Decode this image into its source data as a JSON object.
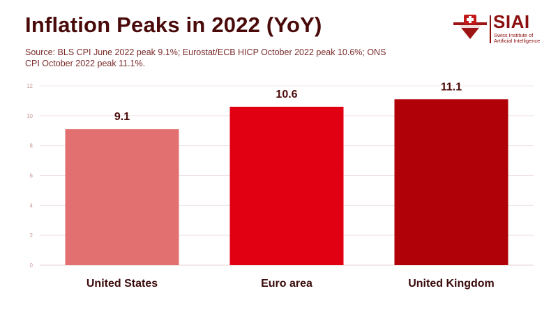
{
  "title": "Inflation Peaks in 2022 (YoY)",
  "subtitle": "Source: BLS CPI June 2022 peak 9.1%; Eurostat/ECB HICP October 2022 peak 10.6%; ONS CPI October 2022 peak 11.1%.",
  "logo": {
    "word": "SIAI",
    "line1": "Swiss Institute of",
    "line2": "Artificial Intelligence",
    "icon": "swiss-cross-shield-icon"
  },
  "colors": {
    "title": "#4a0a0a",
    "bar_us": "#e37070",
    "bar_euro": "#e00012",
    "bar_uk": "#b00008",
    "grid": "#f0e4e4",
    "tick": "#cc9999"
  },
  "chart_data": {
    "type": "bar",
    "title": "Inflation Peaks in 2022 (YoY)",
    "categories": [
      "United States",
      "Euro area",
      "United Kingdom"
    ],
    "values": [
      9.1,
      10.6,
      11.1
    ],
    "value_labels": [
      "9.1",
      "10.6",
      "11.1"
    ],
    "xlabel": "",
    "ylabel": "",
    "ylim": [
      0,
      12
    ],
    "yticks": [
      0,
      2,
      4,
      6,
      8,
      10,
      12
    ],
    "grid": true
  }
}
